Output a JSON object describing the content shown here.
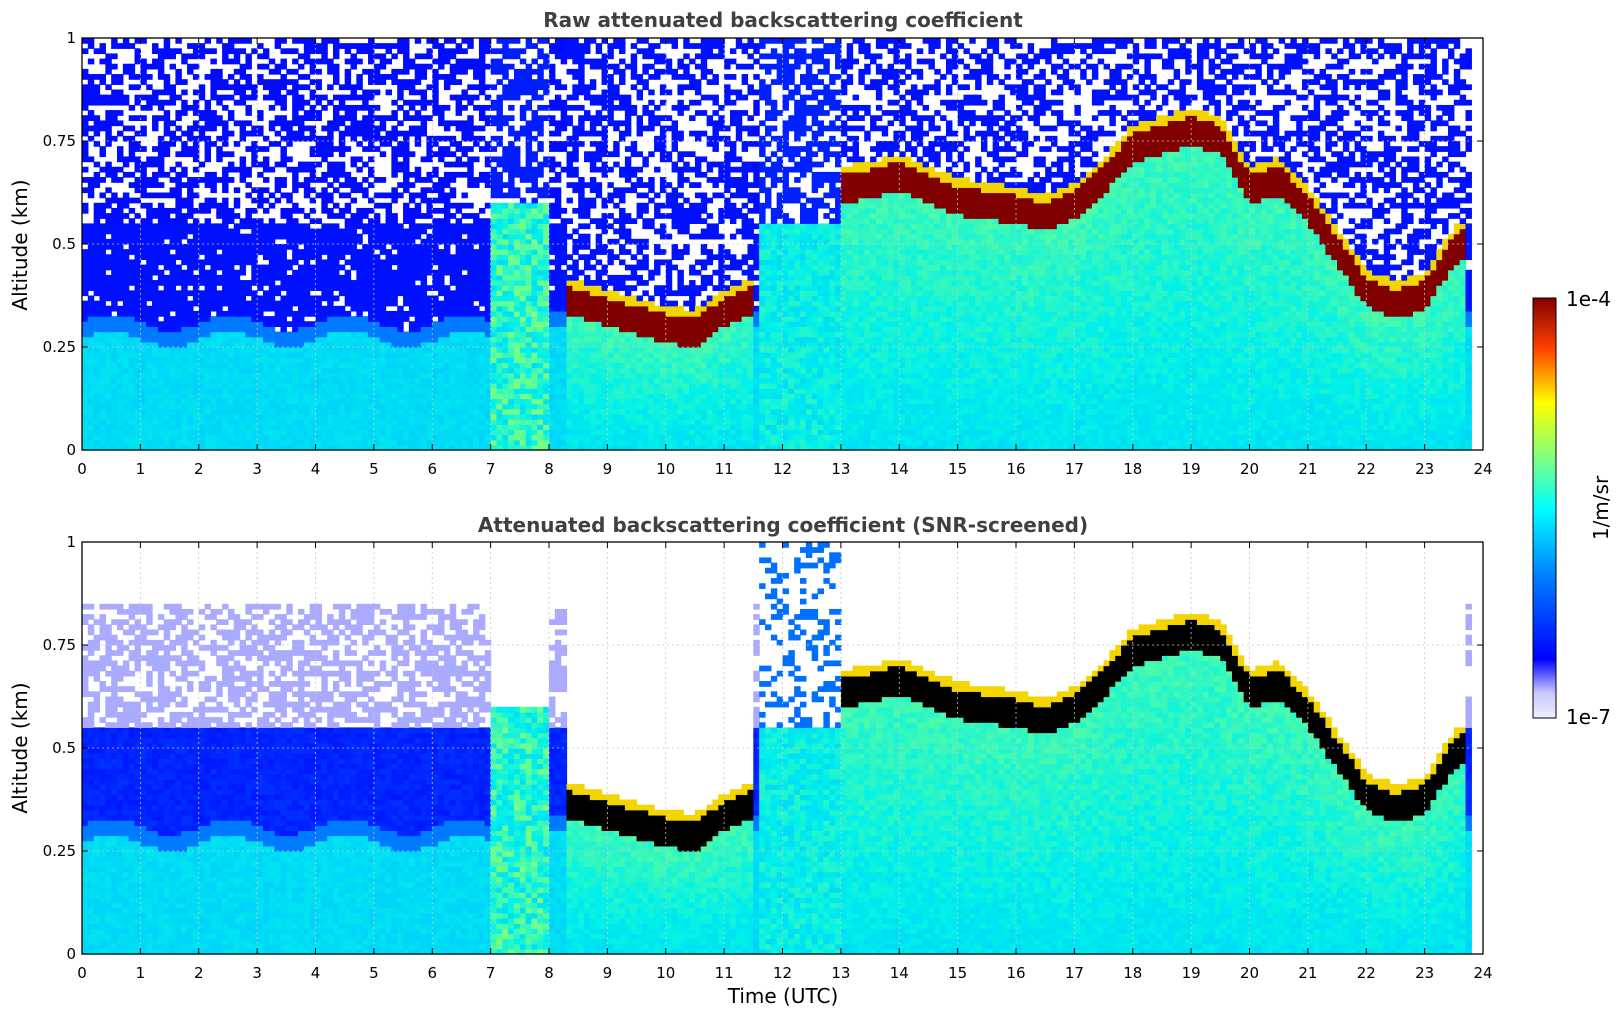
{
  "chart_data": [
    {
      "type": "heatmap",
      "title": "Raw attenuated backscattering coefficient",
      "xlabel": "",
      "ylabel": "Altitude (km)",
      "xlim": [
        0,
        24
      ],
      "ylim": [
        0,
        1
      ],
      "x_ticks": [
        "0",
        "1",
        "2",
        "3",
        "4",
        "5",
        "6",
        "7",
        "8",
        "9",
        "10",
        "11",
        "12",
        "13",
        "14",
        "15",
        "16",
        "17",
        "18",
        "19",
        "20",
        "21",
        "22",
        "23",
        "24"
      ],
      "y_ticks": [
        "0",
        "0.25",
        "0.5",
        "0.75",
        "1"
      ],
      "screening": "raw",
      "cloud_base_km": [
        {
          "t": 0,
          "z": null
        },
        {
          "t": 8.0,
          "z": null
        },
        {
          "t": 8.3,
          "z": 0.33
        },
        {
          "t": 9.0,
          "z": 0.3
        },
        {
          "t": 9.5,
          "z": 0.28
        },
        {
          "t": 10.0,
          "z": 0.26
        },
        {
          "t": 10.5,
          "z": 0.25
        },
        {
          "t": 11.0,
          "z": 0.3
        },
        {
          "t": 11.5,
          "z": 0.33
        },
        {
          "t": 12.0,
          "z": null
        },
        {
          "t": 13.0,
          "z": 0.6
        },
        {
          "t": 13.5,
          "z": 0.61
        },
        {
          "t": 14.0,
          "z": 0.63
        },
        {
          "t": 14.5,
          "z": 0.6
        },
        {
          "t": 15.0,
          "z": 0.57
        },
        {
          "t": 15.5,
          "z": 0.56
        },
        {
          "t": 16.0,
          "z": 0.55
        },
        {
          "t": 16.5,
          "z": 0.53
        },
        {
          "t": 17.0,
          "z": 0.56
        },
        {
          "t": 17.5,
          "z": 0.62
        },
        {
          "t": 18.0,
          "z": 0.7
        },
        {
          "t": 18.5,
          "z": 0.72
        },
        {
          "t": 19.0,
          "z": 0.74
        },
        {
          "t": 19.5,
          "z": 0.72
        },
        {
          "t": 20.0,
          "z": 0.6
        },
        {
          "t": 20.5,
          "z": 0.62
        },
        {
          "t": 21.0,
          "z": 0.55
        },
        {
          "t": 21.5,
          "z": 0.45
        },
        {
          "t": 22.0,
          "z": 0.35
        },
        {
          "t": 22.5,
          "z": 0.32
        },
        {
          "t": 23.0,
          "z": 0.34
        },
        {
          "t": 23.5,
          "z": 0.45
        },
        {
          "t": 23.7,
          "z": 0.47
        }
      ]
    },
    {
      "type": "heatmap",
      "title": "Attenuated backscattering coefficient (SNR-screened)",
      "xlabel": "Time (UTC)",
      "ylabel": "Altitude (km)",
      "xlim": [
        0,
        24
      ],
      "ylim": [
        0,
        1
      ],
      "x_ticks": [
        "0",
        "1",
        "2",
        "3",
        "4",
        "5",
        "6",
        "7",
        "8",
        "9",
        "10",
        "11",
        "12",
        "13",
        "14",
        "15",
        "16",
        "17",
        "18",
        "19",
        "20",
        "21",
        "22",
        "23",
        "24"
      ],
      "y_ticks": [
        "0",
        "0.25",
        "0.5",
        "0.75",
        "1"
      ],
      "screening": "snr",
      "cloud_base_km": "same as raw panel"
    }
  ],
  "colorbar": {
    "label": "1/m/sr",
    "top_label": "1e-4",
    "bottom_label": "1e-7",
    "scale": "log",
    "colormap": "jet",
    "range": [
      1e-07,
      0.0001
    ]
  },
  "colors": {
    "background": "#ffffff",
    "axis": "#000000",
    "title": "#404040"
  }
}
